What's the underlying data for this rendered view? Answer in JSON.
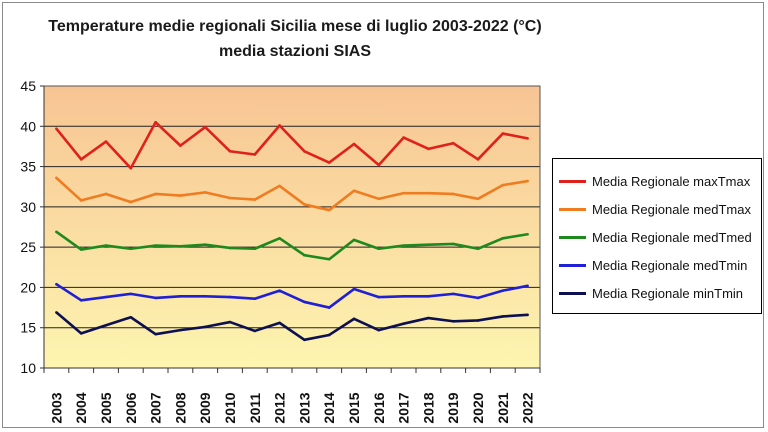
{
  "chart_data": {
    "type": "line",
    "title": [
      "Temperature medie regionali Sicilia mese di luglio 2003-2022 (°C)",
      "media stazioni SIAS"
    ],
    "xlabel": "",
    "ylabel": "",
    "ylim": [
      10,
      45
    ],
    "yticks": [
      10,
      15,
      20,
      25,
      30,
      35,
      40,
      45
    ],
    "grid": true,
    "legend_position": "right",
    "categories": [
      "2003",
      "2004",
      "2005",
      "2006",
      "2007",
      "2008",
      "2009",
      "2010",
      "2011",
      "2012",
      "2013",
      "2014",
      "2015",
      "2016",
      "2017",
      "2018",
      "2019",
      "2020",
      "2021",
      "2022"
    ],
    "series": [
      {
        "name": "Media Regionale maxTmax",
        "color": "#e0201b",
        "values": [
          39.7,
          35.9,
          38.1,
          34.8,
          40.5,
          37.6,
          39.9,
          36.9,
          36.5,
          40.1,
          36.9,
          35.5,
          37.8,
          35.2,
          38.6,
          37.2,
          37.9,
          35.9,
          39.1,
          38.5
        ]
      },
      {
        "name": "Media Regionale medTmax",
        "color": "#f07c22",
        "values": [
          33.6,
          30.8,
          31.6,
          30.6,
          31.6,
          31.4,
          31.8,
          31.1,
          30.9,
          32.6,
          30.3,
          29.6,
          32.0,
          31.0,
          31.7,
          31.7,
          31.6,
          31.0,
          32.7,
          33.2
        ]
      },
      {
        "name": "Media Regionale medTmed",
        "color": "#1e8a1e",
        "values": [
          26.9,
          24.7,
          25.2,
          24.8,
          25.2,
          25.1,
          25.3,
          24.9,
          24.8,
          26.1,
          24.0,
          23.5,
          25.9,
          24.8,
          25.2,
          25.3,
          25.4,
          24.8,
          26.1,
          26.6
        ]
      },
      {
        "name": "Media Regionale medTmin",
        "color": "#1f1fd6",
        "values": [
          20.4,
          18.4,
          18.8,
          19.2,
          18.7,
          18.9,
          18.9,
          18.8,
          18.6,
          19.6,
          18.2,
          17.5,
          19.8,
          18.8,
          18.9,
          18.9,
          19.2,
          18.7,
          19.6,
          20.2
        ]
      },
      {
        "name": "Media Regionale minTmin",
        "color": "#0d1050",
        "values": [
          16.9,
          14.3,
          15.3,
          16.3,
          14.2,
          14.7,
          15.1,
          15.7,
          14.6,
          15.6,
          13.5,
          14.1,
          16.1,
          14.7,
          15.5,
          16.2,
          15.8,
          15.9,
          16.4,
          16.6
        ]
      }
    ],
    "plot_background": [
      "#f7c493",
      "#fdf5b0"
    ]
  }
}
